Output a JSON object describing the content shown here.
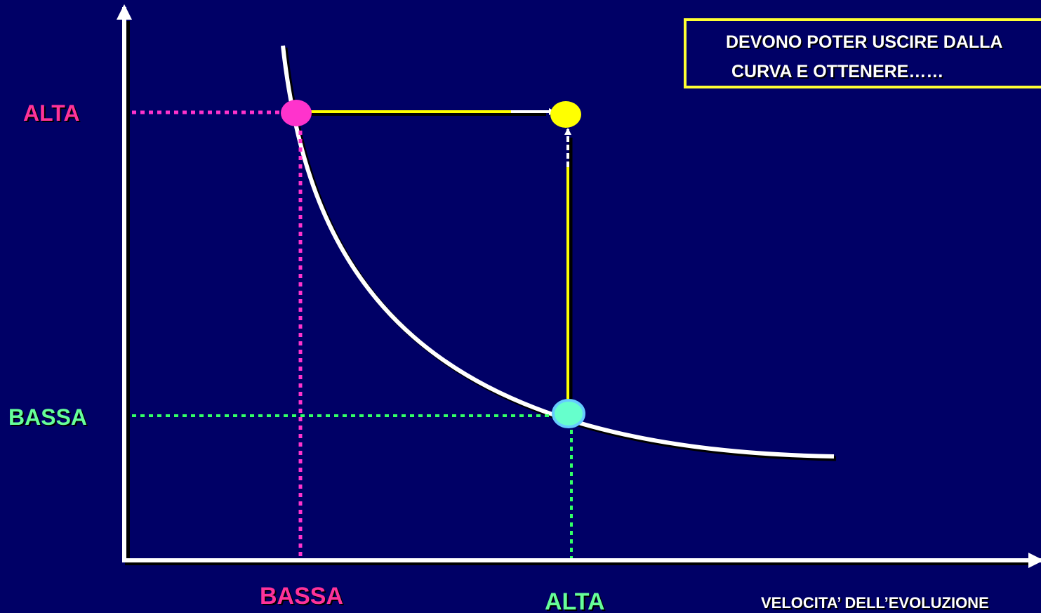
{
  "colors": {
    "background": "#000066",
    "axis": "#FFFFFF",
    "curve": "#FFFFFF",
    "pink": "#FF33CC",
    "green": "#33FF66",
    "cyan_point": "#66FFCC",
    "yellow": "#FFFF00",
    "label_pink": "#FF3399",
    "label_green": "#66FF99",
    "text_white": "#FFFFFF"
  },
  "y_axis": {
    "high_label": "ALTA",
    "low_label": "BASSA"
  },
  "x_axis": {
    "title": "VELOCITA’ DELL’EVOLUZIONE",
    "low_label": "BASSA",
    "high_label": "ALTA"
  },
  "note": {
    "line1": "DEVONO POTER USCIRE DALLA",
    "line2": "CURVA E OTTENERE……"
  },
  "points": {
    "start": {
      "name": "pink-point",
      "color": "pink"
    },
    "on_curve": {
      "name": "cyan-point",
      "color": "cyan_point"
    },
    "target": {
      "name": "yellow-point",
      "color": "yellow"
    }
  }
}
